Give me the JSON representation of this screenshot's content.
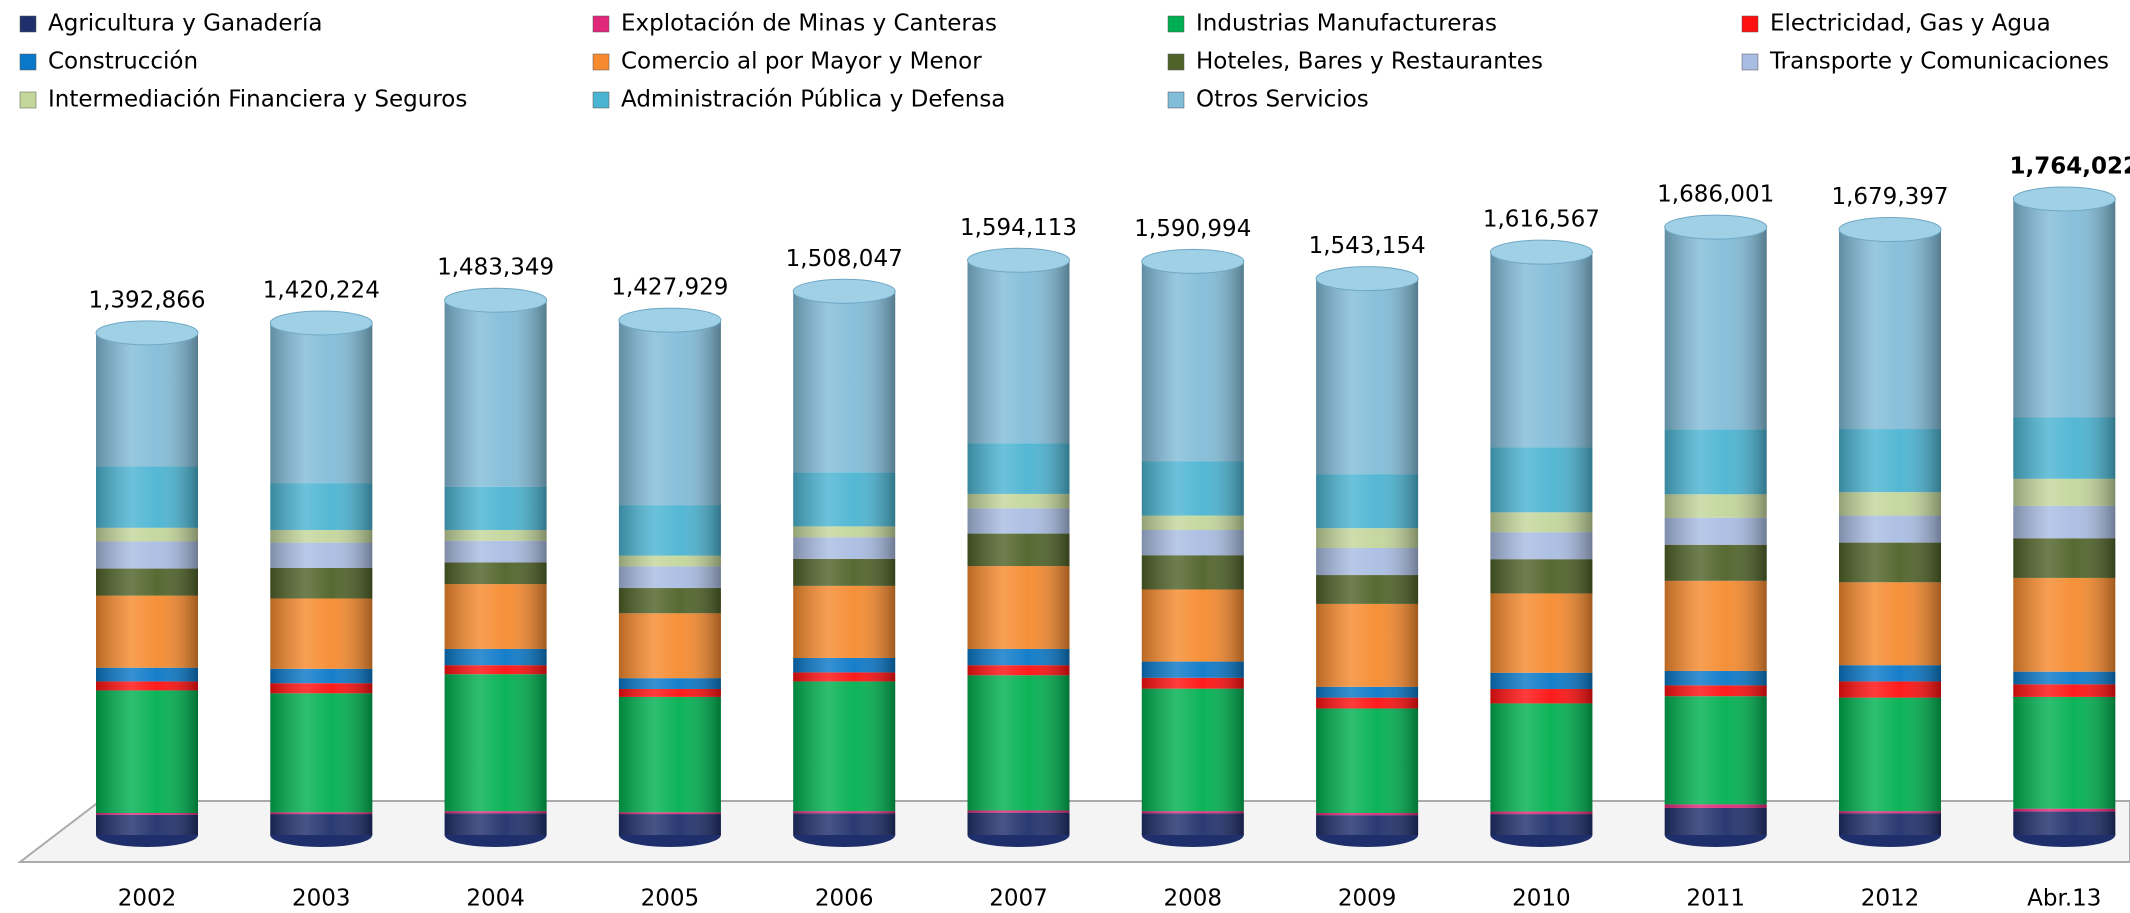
{
  "chart_data": {
    "type": "stacked-cylinder",
    "categories": [
      "2002",
      "2003",
      "2004",
      "2005",
      "2006",
      "2007",
      "2008",
      "2009",
      "2010",
      "2011",
      "2012",
      "Abr.13"
    ],
    "series": [
      {
        "name": "Agricultura y Ganadería",
        "color": "#1f2f6b",
        "values": [
          56000,
          58000,
          60000,
          58000,
          60000,
          62000,
          60000,
          55000,
          58000,
          75000,
          60000,
          65000
        ]
      },
      {
        "name": "Explotación de Minas y Canteras",
        "color": "#e0287a",
        "values": [
          5000,
          5000,
          6000,
          5000,
          6000,
          6000,
          6000,
          6000,
          7000,
          10000,
          6000,
          8000
        ]
      },
      {
        "name": "Industrias Manufactureras",
        "color": "#00b050",
        "values": [
          340000,
          330000,
          380000,
          320000,
          360000,
          375000,
          340000,
          290000,
          300000,
          300000,
          315000,
          310000
        ]
      },
      {
        "name": "Electricidad, Gas y Agua",
        "color": "#ff1010",
        "values": [
          25000,
          28000,
          25000,
          22000,
          25000,
          28000,
          30000,
          30000,
          40000,
          30000,
          45000,
          35000
        ]
      },
      {
        "name": "Construcción",
        "color": "#0a78c8",
        "values": [
          38000,
          40000,
          45000,
          30000,
          40000,
          45000,
          45000,
          30000,
          45000,
          40000,
          45000,
          35000
        ]
      },
      {
        "name": "Comercio al por Mayor y Menor",
        "color": "#f68a2e",
        "values": [
          200000,
          195000,
          180000,
          180000,
          200000,
          230000,
          200000,
          230000,
          220000,
          250000,
          230000,
          260000
        ]
      },
      {
        "name": "Hoteles, Bares y Restaurantes",
        "color": "#4f6228",
        "values": [
          75000,
          85000,
          60000,
          70000,
          75000,
          90000,
          95000,
          80000,
          95000,
          100000,
          110000,
          110000
        ]
      },
      {
        "name": "Transporte y Comunicaciones",
        "color": "#a9bce2",
        "values": [
          75000,
          70000,
          60000,
          60000,
          60000,
          70000,
          70000,
          75000,
          75000,
          75000,
          75000,
          90000
        ]
      },
      {
        "name": "Intermediación Financiera y Seguros",
        "color": "#c3d69b",
        "values": [
          38000,
          35000,
          30000,
          30000,
          30000,
          40000,
          40000,
          55000,
          55000,
          65000,
          65000,
          75000
        ]
      },
      {
        "name": "Administración Pública y Defensa",
        "color": "#4bb4d2",
        "values": [
          170000,
          130000,
          120000,
          140000,
          150000,
          140000,
          150000,
          150000,
          180000,
          180000,
          175000,
          170000
        ]
      },
      {
        "name": "Otros Servicios",
        "color": "#82bcd8",
        "values": [
          370866,
          444224,
          517349,
          512929,
          502047,
          508113,
          554994,
          542154,
          541567,
          561001,
          553397,
          606022
        ]
      }
    ],
    "totals": [
      1392866,
      1420224,
      1483349,
      1427929,
      1508047,
      1594113,
      1590994,
      1543154,
      1616567,
      1686001,
      1679397,
      1764022
    ],
    "total_labels": [
      "1,392,866",
      "1,420,224",
      "1,483,349",
      "1,427,929",
      "1,508,047",
      "1,594,113",
      "1,590,994",
      "1,543,154",
      "1,616,567",
      "1,686,001",
      "1,679,397",
      "1,764,022"
    ],
    "legend": "top"
  }
}
